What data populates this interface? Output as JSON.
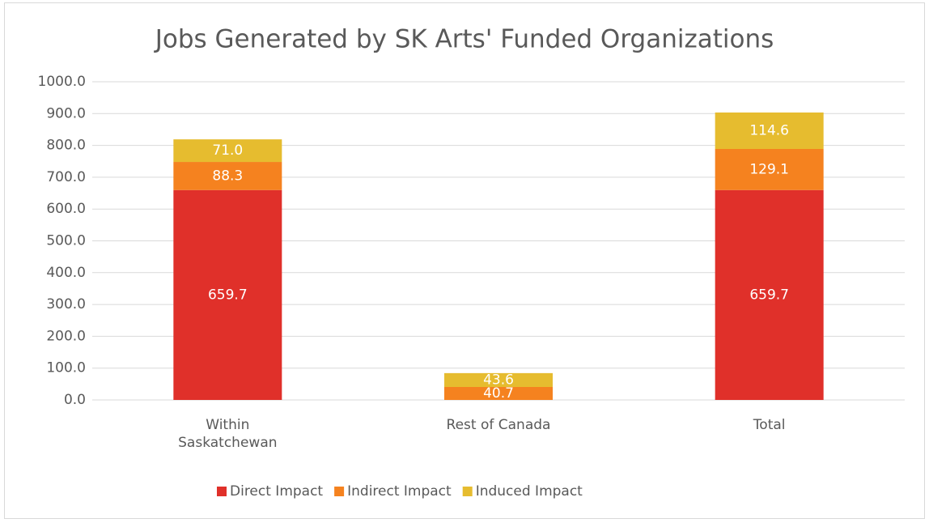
{
  "chart_data": {
    "type": "stacked_bar",
    "title": "Jobs Generated by SK Arts' Funded Organizations",
    "categories": [
      "Within Saskatchewan",
      "Rest of Canada",
      "Total"
    ],
    "series": [
      {
        "name": "Direct Impact",
        "color": "#e0302a",
        "values": [
          659.7,
          0,
          659.7
        ],
        "value_labels": [
          "659.7",
          null,
          "659.7"
        ]
      },
      {
        "name": "Indirect Impact",
        "color": "#f5821f",
        "values": [
          88.3,
          40.7,
          129.1
        ],
        "value_labels": [
          "88.3",
          "40.7",
          "129.1"
        ]
      },
      {
        "name": "Induced Impact",
        "color": "#e6bc2f",
        "values": [
          71.0,
          43.6,
          114.6
        ],
        "value_labels": [
          "71.0",
          "43.6",
          "114.6"
        ]
      }
    ],
    "ylim": [
      0,
      1000
    ],
    "yticks": [
      {
        "value": 0,
        "label": "0.0"
      },
      {
        "value": 100,
        "label": "100.0"
      },
      {
        "value": 200,
        "label": "200.0"
      },
      {
        "value": 300,
        "label": "300.0"
      },
      {
        "value": 400,
        "label": "400.0"
      },
      {
        "value": 500,
        "label": "500.0"
      },
      {
        "value": 600,
        "label": "600.0"
      },
      {
        "value": 700,
        "label": "700.0"
      },
      {
        "value": 800,
        "label": "800.0"
      },
      {
        "value": 900,
        "label": "900.0"
      },
      {
        "value": 1000,
        "label": "1000.0"
      }
    ],
    "grid": true,
    "legend": "bottom"
  }
}
